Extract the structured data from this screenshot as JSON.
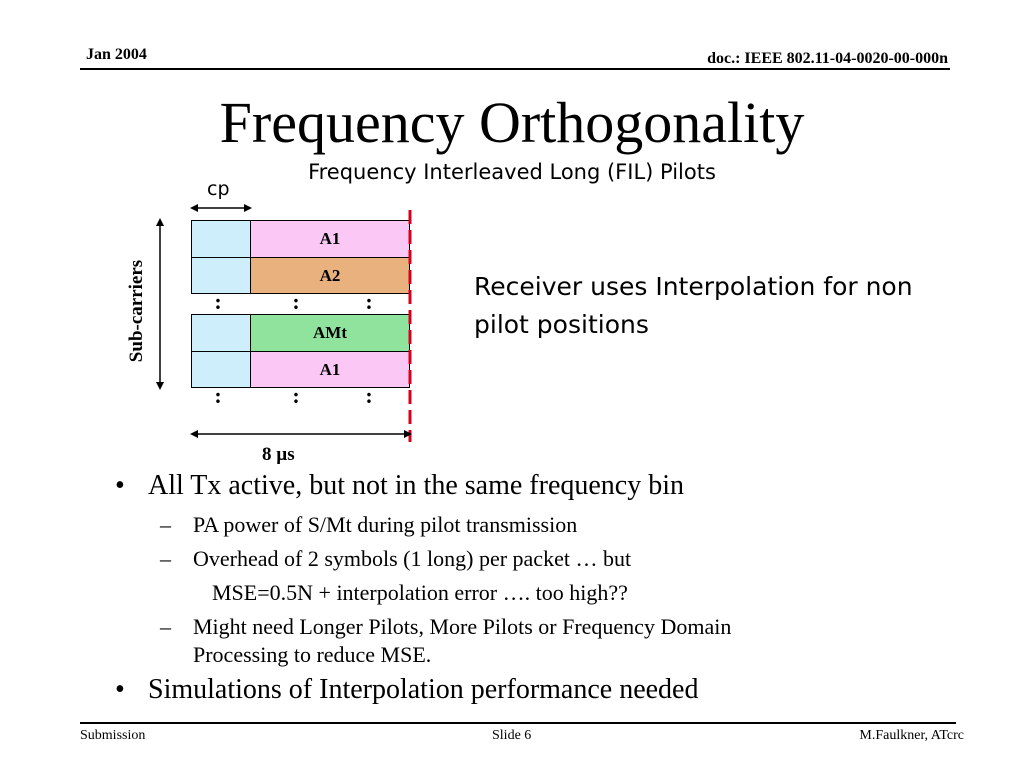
{
  "header": {
    "date": "Jan 2004",
    "doc": "doc.: IEEE 802.11-04-0020-00-000n"
  },
  "title": "Frequency Orthogonality",
  "subtitle": "Frequency Interleaved Long (FIL)  Pilots",
  "diagram": {
    "cp_label": "cp",
    "y_label": "Sub-carriers",
    "duration_label": "8 µs",
    "rows": [
      {
        "label": "A1",
        "color": "#fbc8f6"
      },
      {
        "label": "A2",
        "color": "#e8b17e"
      },
      {
        "label": "AMt",
        "color": "#8fe39d"
      },
      {
        "label": "A1",
        "color": "#fbc8f6"
      }
    ],
    "cp_color": "#cdeefa",
    "boundary_color": "#d4001c"
  },
  "side_note": "Receiver uses Interpolation for non pilot positions",
  "bullets": {
    "b1": "All Tx active, but not in the same frequency bin",
    "b1_sub1": "PA power of S/Mt during pilot transmission",
    "b1_sub2": "Overhead of 2 symbols (1 long) per packet  … but",
    "b1_sub2_cont": "MSE=0.5N + interpolation error  …. too high??",
    "b1_sub3_line1": "Might need Longer Pilots, More Pilots or Frequency Domain",
    "b1_sub3_line2": "Processing to reduce MSE.",
    "b2": "Simulations of Interpolation performance needed",
    "bullet_char": "•",
    "dash_char": "–"
  },
  "footer": {
    "left": "Submission",
    "center": "Slide 6",
    "right": "M.Faulkner, ATcrc"
  }
}
